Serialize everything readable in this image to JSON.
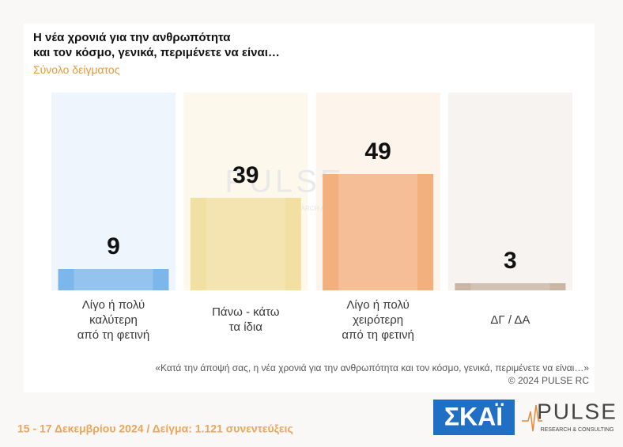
{
  "chart_data": {
    "type": "bar",
    "title": "Η νέα χρονιά για την ανθρωπότητα\nκαι τον κόσμο, γενικά, περιμένετε να είναι…",
    "subtitle": "Σύνολο δείγματος",
    "categories": [
      "Λίγο ή πολύ\nκαλύτερη\nαπό τη φετινή",
      "Πάνω - κάτω\nτα ίδια",
      "Λίγο ή πολύ\nχειρότερη\nαπό τη φετινή",
      "ΔΓ / ΔΑ"
    ],
    "values": [
      9,
      39,
      49,
      3
    ],
    "colors": [
      "#7db6ea",
      "#f2dfa2",
      "#f3b07f",
      "#c9b5a4"
    ],
    "question": "«Κατά την άποψή σας, η νέα χρονιά για την ανθρωπότητα και τον κόσμο, γενικά, περιμένετε να είναι…»",
    "copyright": "©  2024  PULSE RC"
  },
  "footer": "15 - 17 Δεκεμβρίου 2024  /  Δείγμα:  1.121 συνεντεύξεις",
  "logos": {
    "skai": "ΣΚΑΪ",
    "pulse": "PULSE",
    "pulse_tagline": "RESEARCH & CONSULTING"
  }
}
